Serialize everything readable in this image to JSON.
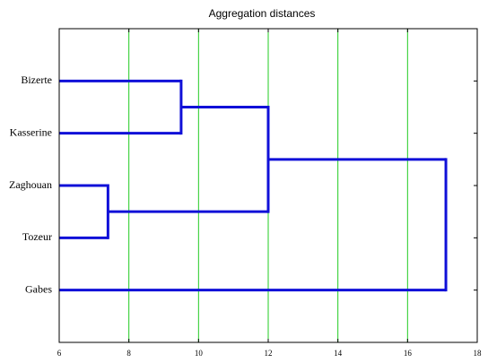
{
  "chart_data": {
    "type": "dendrogram",
    "title": "Aggregation distances",
    "tree": {
      "height": 17.1,
      "children": [
        {
          "height": 12.0,
          "children": [
            {
              "height": 9.5,
              "children": [
                {
                  "label": "Bizerte"
                },
                {
                  "label": "Kasserine"
                }
              ]
            },
            {
              "height": 7.4,
              "children": [
                {
                  "label": "Zaghouan"
                },
                {
                  "label": "Tozeur"
                }
              ]
            }
          ]
        },
        {
          "label": "Gabes"
        }
      ]
    },
    "xlim": [
      6,
      18
    ],
    "xticks": [
      6,
      8,
      10,
      12,
      14,
      16,
      18
    ],
    "grid": true,
    "grid_color": "#22cc22",
    "color": "#1010d8"
  }
}
